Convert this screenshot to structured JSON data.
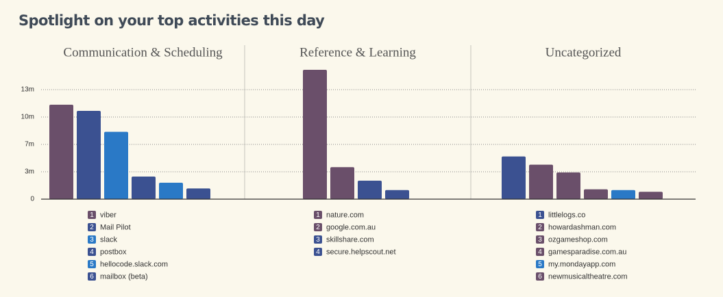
{
  "title": "Spotlight on your top activities this day",
  "chart_data": [
    {
      "type": "bar",
      "title": "Communication & Scheduling",
      "categories": [
        "viber",
        "Mail Pilot",
        "slack",
        "postbox",
        "hellocode.slack.com",
        "mailbox (beta)"
      ],
      "ranks": [
        1,
        2,
        3,
        4,
        5,
        6
      ],
      "values": [
        11.5,
        10.75,
        8.2,
        2.75,
        2.0,
        1.3
      ],
      "colors": [
        "#6a4f6a",
        "#3b5191",
        "#2a79c6",
        "#3b5191",
        "#2a79c6",
        "#3b5191"
      ],
      "ylim": [
        0,
        16.5
      ],
      "yticks": [
        0,
        {
          "value": 3.33,
          "label": "3m"
        },
        {
          "value": 6.67,
          "label": "7m"
        },
        {
          "value": 10,
          "label": "10m"
        },
        {
          "value": 13.33,
          "label": "13m"
        }
      ],
      "grid": true
    },
    {
      "type": "bar",
      "title": "Reference & Learning",
      "categories": [
        "nature.com",
        "google.com.au",
        "skillshare.com",
        "secure.helpscout.net"
      ],
      "ranks": [
        1,
        2,
        3,
        4
      ],
      "values": [
        15.75,
        3.9,
        2.25,
        1.1
      ],
      "colors": [
        "#6a4f6a",
        "#6a4f6a",
        "#3b5191",
        "#3b5191"
      ],
      "ylim": [
        0,
        16.5
      ]
    },
    {
      "type": "bar",
      "title": "Uncategorized",
      "categories": [
        "littlelogs.co",
        "howardashman.com",
        "ozgameshop.com",
        "gamesparadise.com.au",
        "my.mondayapp.com",
        "newmusicaltheatre.com"
      ],
      "ranks": [
        1,
        2,
        3,
        4,
        5,
        6
      ],
      "values": [
        5.2,
        4.2,
        3.25,
        1.2,
        1.1,
        0.9
      ],
      "colors": [
        "#3b5191",
        "#6a4f6a",
        "#6a4f6a",
        "#6a4f6a",
        "#2a79c6",
        "#6a4f6a"
      ],
      "ylim": [
        0,
        16.5
      ]
    }
  ]
}
